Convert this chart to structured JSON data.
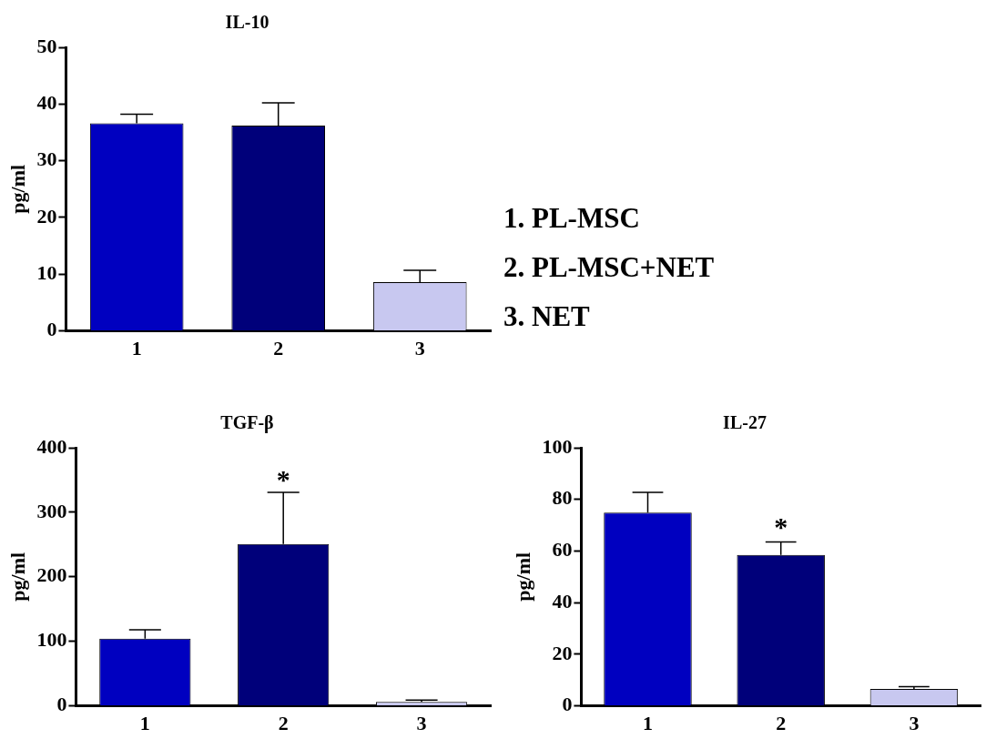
{
  "chart_data": [
    {
      "type": "bar",
      "title": "IL-10",
      "ylabel": "pg/ml",
      "categories": [
        "1",
        "2",
        "3"
      ],
      "values": [
        36.6,
        36.2,
        8.6
      ],
      "errors": [
        1.6,
        4.0,
        2.1
      ],
      "colors": [
        "#0000c0",
        "#00007a",
        "#c8c8f0"
      ],
      "ylim": [
        0,
        50
      ],
      "yticks": [
        0,
        10,
        20,
        30,
        40,
        50
      ],
      "grid": false,
      "legend": false
    },
    {
      "type": "other",
      "annotations": [
        "1. PL-MSC",
        "2. PL-MSC+NET",
        "3. NET"
      ]
    },
    {
      "type": "bar",
      "title": "TGF-β",
      "ylabel": "pg/ml",
      "categories": [
        "1",
        "2",
        "3"
      ],
      "values": [
        104,
        251,
        6
      ],
      "errors": [
        14,
        80,
        3
      ],
      "colors": [
        "#0000c0",
        "#00007a",
        "#c8c8f0"
      ],
      "ylim": [
        0,
        400
      ],
      "yticks": [
        0,
        100,
        200,
        300,
        400
      ],
      "grid": false,
      "legend": false,
      "annotations": [
        "*"
      ]
    },
    {
      "type": "bar",
      "title": "IL-27",
      "ylabel": "pg/ml",
      "categories": [
        "1",
        "2",
        "3"
      ],
      "values": [
        74.9,
        58.5,
        6.6
      ],
      "errors": [
        7.8,
        5.0,
        0.8
      ],
      "colors": [
        "#0000c0",
        "#00007a",
        "#c8c8f0"
      ],
      "ylim": [
        0,
        100
      ],
      "yticks": [
        0,
        20,
        40,
        60,
        80,
        100
      ],
      "grid": false,
      "legend": false,
      "annotations": [
        "*"
      ]
    }
  ]
}
